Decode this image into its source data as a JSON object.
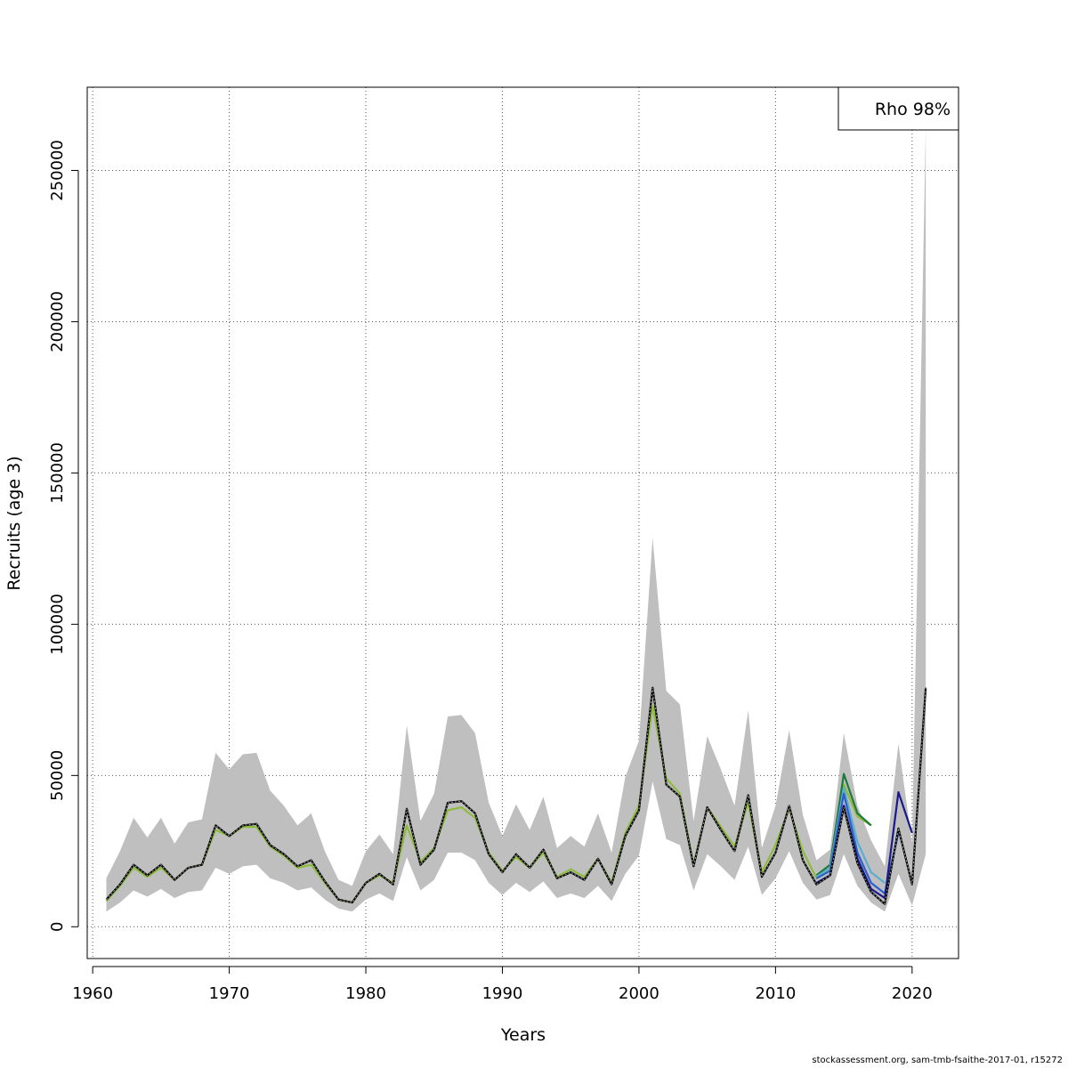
{
  "chart_data": {
    "type": "line",
    "xlabel": "Years",
    "ylabel": "Recruits (age 3)",
    "xlim": [
      1959.6,
      2023.4
    ],
    "ylim": [
      -10500,
      277500
    ],
    "x_ticks": [
      1960,
      1970,
      1980,
      1990,
      2000,
      2010,
      2020
    ],
    "y_ticks": [
      0,
      50000,
      100000,
      150000,
      200000,
      250000
    ],
    "grid": true,
    "legend": {
      "position": "top-right",
      "text": "Rho 98%"
    },
    "confidence_band": {
      "x": [
        1961,
        1962,
        1963,
        1964,
        1965,
        1966,
        1967,
        1968,
        1969,
        1970,
        1971,
        1972,
        1973,
        1974,
        1975,
        1976,
        1977,
        1978,
        1979,
        1980,
        1981,
        1982,
        1983,
        1984,
        1985,
        1986,
        1987,
        1988,
        1989,
        1990,
        1991,
        1992,
        1993,
        1994,
        1995,
        1996,
        1997,
        1998,
        1999,
        2000,
        2001,
        2002,
        2003,
        2004,
        2005,
        2006,
        2007,
        2008,
        2009,
        2010,
        2011,
        2012,
        2013,
        2014,
        2015,
        2016,
        2017,
        2018,
        2019,
        2020,
        2021
      ],
      "upper": [
        16000,
        25000,
        36000,
        29500,
        36000,
        27500,
        34500,
        35500,
        57500,
        52000,
        57000,
        57500,
        45000,
        40000,
        33500,
        37500,
        25000,
        15500,
        13500,
        25000,
        30500,
        24000,
        66500,
        35000,
        44000,
        69500,
        70000,
        64000,
        41000,
        30000,
        40500,
        32000,
        43000,
        26000,
        30000,
        26500,
        37500,
        24500,
        49500,
        61500,
        128500,
        78000,
        73500,
        35000,
        63000,
        52000,
        40000,
        71500,
        26000,
        40000,
        65000,
        37000,
        22000,
        25500,
        64000,
        40000,
        28500,
        20000,
        60500,
        27500,
        264000
      ],
      "lower": [
        5000,
        8000,
        12000,
        10000,
        12500,
        9500,
        11500,
        12000,
        19500,
        17500,
        20000,
        20500,
        16000,
        14500,
        12000,
        13000,
        9000,
        6000,
        5000,
        9000,
        11000,
        8500,
        23000,
        12000,
        15500,
        24500,
        24500,
        22000,
        14500,
        10500,
        14500,
        11500,
        15000,
        9500,
        11000,
        9500,
        13500,
        8500,
        17500,
        23500,
        48000,
        29000,
        27000,
        12000,
        24000,
        20000,
        15500,
        26500,
        10500,
        16000,
        25000,
        14500,
        9000,
        10500,
        24000,
        13500,
        8000,
        5000,
        17500,
        7000,
        24000
      ]
    },
    "series": [
      {
        "name": "",
        "color": "#000000",
        "dashed_overlay": true,
        "x": [
          1961,
          1962,
          1963,
          1964,
          1965,
          1966,
          1967,
          1968,
          1969,
          1970,
          1971,
          1972,
          1973,
          1974,
          1975,
          1976,
          1977,
          1978,
          1979,
          1980,
          1981,
          1982,
          1983,
          1984,
          1985,
          1986,
          1987,
          1988,
          1989,
          1990,
          1991,
          1992,
          1993,
          1994,
          1995,
          1996,
          1997,
          1998,
          1999,
          2000,
          2001,
          2002,
          2003,
          2004,
          2005,
          2006,
          2007,
          2008,
          2009,
          2010,
          2011,
          2012,
          2013,
          2014,
          2015,
          2016,
          2017,
          2018,
          2019,
          2020,
          2021
        ],
        "values": [
          9000,
          14000,
          20500,
          17000,
          20500,
          15500,
          19500,
          20500,
          33500,
          30000,
          33500,
          34000,
          27000,
          24000,
          20000,
          22000,
          15000,
          9000,
          8000,
          14500,
          17500,
          14000,
          39000,
          20500,
          25500,
          41000,
          41500,
          37500,
          24000,
          18000,
          24000,
          19500,
          25500,
          16000,
          18000,
          15500,
          22500,
          14000,
          30000,
          38500,
          79000,
          47000,
          43000,
          20000,
          39500,
          32000,
          25000,
          43500,
          16500,
          24500,
          40000,
          22000,
          14000,
          17000,
          39500,
          21000,
          11500,
          7500,
          32500,
          14000,
          79000
        ]
      },
      {
        "name": "",
        "color": "#1a1a8c",
        "x": [
          2013,
          2014,
          2015,
          2016,
          2017,
          2018,
          2019,
          2020
        ],
        "values": [
          14500,
          17000,
          40000,
          22500,
          12500,
          9500,
          44500,
          31000
        ]
      },
      {
        "name": "",
        "color": "#2b5fcf",
        "x": [
          2013,
          2014,
          2015,
          2016,
          2017,
          2018,
          2019
        ],
        "values": [
          16000,
          18500,
          44000,
          24500,
          14500,
          11000,
          31000
        ]
      },
      {
        "name": "",
        "color": "#5aaed0",
        "x": [
          2013,
          2014,
          2015,
          2016,
          2017,
          2018
        ],
        "values": [
          16500,
          19500,
          46000,
          28000,
          18000,
          14500
        ]
      },
      {
        "name": "",
        "color": "#8dbb3c",
        "x": [
          1961,
          1962,
          1963,
          1964,
          1965,
          1966,
          1967,
          1968,
          1969,
          1970,
          1971,
          1972,
          1973,
          1974,
          1975,
          1976,
          1977,
          1978,
          1979,
          1980,
          1981,
          1982,
          1983,
          1984,
          1985,
          1986,
          1987,
          1988,
          1989,
          1990,
          1991,
          1992,
          1993,
          1994,
          1995,
          1996,
          1997,
          1998,
          1999,
          2000,
          2001,
          2002,
          2003,
          2004,
          2005,
          2006,
          2007,
          2008,
          2009,
          2010,
          2011,
          2012,
          2013,
          2014,
          2015,
          2016,
          2017
        ],
        "values": [
          8500,
          13500,
          19500,
          16500,
          19500,
          15500,
          19500,
          20500,
          32000,
          30000,
          33000,
          33000,
          26500,
          23500,
          19500,
          20500,
          14500,
          9000,
          8000,
          14500,
          17000,
          14500,
          33500,
          21500,
          26000,
          38500,
          39500,
          36000,
          24500,
          18500,
          23000,
          19500,
          24500,
          16500,
          19000,
          16500,
          22500,
          14500,
          31000,
          40000,
          73000,
          49000,
          44000,
          20500,
          39500,
          33000,
          26500,
          41000,
          18000,
          27000,
          39000,
          25000,
          16000,
          19500,
          47000,
          36500,
          33500
        ]
      },
      {
        "name": "",
        "color": "#1e7a3a",
        "x": [
          2013,
          2014,
          2015,
          2016,
          2017
        ],
        "values": [
          17000,
          20500,
          50500,
          37500,
          33500
        ]
      }
    ]
  },
  "footer": "stockassessment.org, sam-tmb-fsaithe-2017-01, r15272"
}
